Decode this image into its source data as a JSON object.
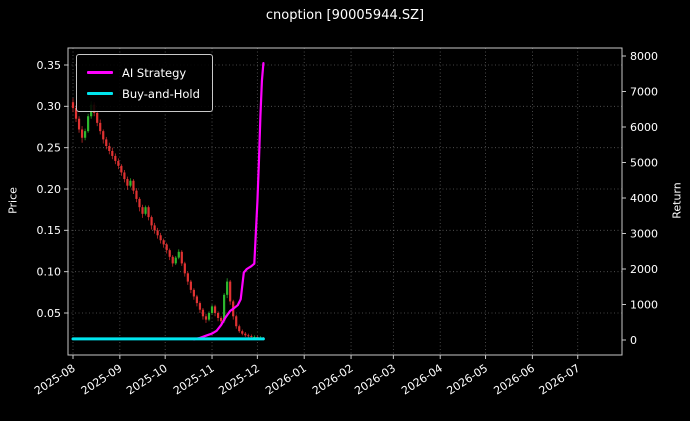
{
  "title": "cnoption [90005944.SZ]",
  "legend": [
    {
      "label": "AI Strategy",
      "color": "#ff00ff",
      "swatch_height": 2.5
    },
    {
      "label": "Buy-and-Hold",
      "color": "#00e5ee",
      "swatch_height": 3.5
    }
  ],
  "chart_data": {
    "type": "candlestick",
    "title": "cnoption [90005944.SZ]",
    "left_axis": {
      "label": "Price",
      "ticks": [
        0.05,
        0.1,
        0.15,
        0.2,
        0.25,
        0.3,
        0.35
      ],
      "range": [
        0.0,
        0.37
      ]
    },
    "right_axis": {
      "label": "Return",
      "ticks": [
        0,
        1000,
        2000,
        3000,
        4000,
        5000,
        6000,
        7000,
        8000
      ],
      "range": [
        -450,
        8250
      ]
    },
    "x_axis": {
      "ticks": [
        "2025-08",
        "2025-09",
        "2025-10",
        "2025-11",
        "2025-12",
        "2026-01",
        "2026-02",
        "2026-03",
        "2026-04",
        "2026-05",
        "2026-06",
        "2026-07"
      ],
      "range": [
        "2025-07-29",
        "2026-07-29"
      ]
    },
    "colors": {
      "background": "#000000",
      "text": "#ffffff",
      "spine": "#c8c8c8",
      "grid": "#5a5a5a",
      "up": "#2db82d",
      "down": "#e03232"
    },
    "candles": [
      [
        "2025-08-01",
        0.305,
        0.31,
        0.293,
        0.298
      ],
      [
        "2025-08-03",
        0.298,
        0.301,
        0.281,
        0.285
      ],
      [
        "2025-08-05",
        0.285,
        0.288,
        0.268,
        0.272
      ],
      [
        "2025-08-07",
        0.272,
        0.276,
        0.256,
        0.262
      ],
      [
        "2025-08-09",
        0.262,
        0.273,
        0.259,
        0.27
      ],
      [
        "2025-08-11",
        0.27,
        0.291,
        0.268,
        0.288
      ],
      [
        "2025-08-13",
        0.288,
        0.306,
        0.285,
        0.302
      ],
      [
        "2025-08-15",
        0.302,
        0.305,
        0.288,
        0.292
      ],
      [
        "2025-08-17",
        0.292,
        0.295,
        0.276,
        0.28
      ],
      [
        "2025-08-19",
        0.28,
        0.284,
        0.266,
        0.27
      ],
      [
        "2025-08-21",
        0.27,
        0.272,
        0.255,
        0.26
      ],
      [
        "2025-08-23",
        0.26,
        0.263,
        0.248,
        0.252
      ],
      [
        "2025-08-25",
        0.252,
        0.256,
        0.242,
        0.246
      ],
      [
        "2025-08-27",
        0.246,
        0.25,
        0.236,
        0.24
      ],
      [
        "2025-08-29",
        0.24,
        0.243,
        0.23,
        0.234
      ],
      [
        "2025-08-31",
        0.234,
        0.237,
        0.224,
        0.228
      ],
      [
        "2025-09-02",
        0.228,
        0.23,
        0.216,
        0.22
      ],
      [
        "2025-09-04",
        0.22,
        0.223,
        0.208,
        0.212
      ],
      [
        "2025-09-06",
        0.212,
        0.215,
        0.199,
        0.204
      ],
      [
        "2025-09-08",
        0.204,
        0.213,
        0.202,
        0.21
      ],
      [
        "2025-09-10",
        0.21,
        0.212,
        0.194,
        0.198
      ],
      [
        "2025-09-12",
        0.198,
        0.201,
        0.184,
        0.188
      ],
      [
        "2025-09-14",
        0.188,
        0.19,
        0.173,
        0.178
      ],
      [
        "2025-09-16",
        0.178,
        0.181,
        0.165,
        0.17
      ],
      [
        "2025-09-18",
        0.17,
        0.18,
        0.168,
        0.178
      ],
      [
        "2025-09-20",
        0.178,
        0.18,
        0.162,
        0.166
      ],
      [
        "2025-09-22",
        0.166,
        0.168,
        0.151,
        0.156
      ],
      [
        "2025-09-24",
        0.156,
        0.159,
        0.146,
        0.15
      ],
      [
        "2025-09-26",
        0.15,
        0.153,
        0.14,
        0.144
      ],
      [
        "2025-09-28",
        0.144,
        0.147,
        0.134,
        0.138
      ],
      [
        "2025-09-30",
        0.138,
        0.14,
        0.129,
        0.133
      ],
      [
        "2025-10-02",
        0.133,
        0.135,
        0.122,
        0.126
      ],
      [
        "2025-10-04",
        0.126,
        0.128,
        0.114,
        0.118
      ],
      [
        "2025-10-06",
        0.118,
        0.12,
        0.106,
        0.11
      ],
      [
        "2025-10-08",
        0.11,
        0.119,
        0.108,
        0.117
      ],
      [
        "2025-10-10",
        0.117,
        0.127,
        0.115,
        0.124
      ],
      [
        "2025-10-12",
        0.124,
        0.126,
        0.107,
        0.11
      ],
      [
        "2025-10-14",
        0.11,
        0.112,
        0.094,
        0.098
      ],
      [
        "2025-10-16",
        0.098,
        0.1,
        0.084,
        0.088
      ],
      [
        "2025-10-18",
        0.088,
        0.09,
        0.074,
        0.078
      ],
      [
        "2025-10-20",
        0.078,
        0.08,
        0.066,
        0.07
      ],
      [
        "2025-10-22",
        0.07,
        0.072,
        0.058,
        0.062
      ],
      [
        "2025-10-24",
        0.062,
        0.064,
        0.05,
        0.054
      ],
      [
        "2025-10-26",
        0.054,
        0.056,
        0.042,
        0.046
      ],
      [
        "2025-10-28",
        0.046,
        0.049,
        0.038,
        0.042
      ],
      [
        "2025-10-30",
        0.042,
        0.052,
        0.04,
        0.05
      ],
      [
        "2025-11-01",
        0.05,
        0.06,
        0.048,
        0.058
      ],
      [
        "2025-11-03",
        0.058,
        0.06,
        0.046,
        0.05
      ],
      [
        "2025-11-05",
        0.05,
        0.052,
        0.04,
        0.044
      ],
      [
        "2025-11-07",
        0.044,
        0.046,
        0.036,
        0.04
      ],
      [
        "2025-11-09",
        0.04,
        0.074,
        0.038,
        0.072
      ],
      [
        "2025-11-11",
        0.072,
        0.092,
        0.068,
        0.088
      ],
      [
        "2025-11-13",
        0.088,
        0.09,
        0.06,
        0.064
      ],
      [
        "2025-11-15",
        0.064,
        0.066,
        0.042,
        0.046
      ],
      [
        "2025-11-17",
        0.046,
        0.048,
        0.031,
        0.034
      ],
      [
        "2025-11-19",
        0.034,
        0.036,
        0.026,
        0.028
      ],
      [
        "2025-11-21",
        0.028,
        0.03,
        0.023,
        0.025
      ],
      [
        "2025-11-23",
        0.025,
        0.027,
        0.021,
        0.023
      ],
      [
        "2025-11-25",
        0.023,
        0.025,
        0.02,
        0.022
      ],
      [
        "2025-11-27",
        0.022,
        0.024,
        0.019,
        0.021
      ],
      [
        "2025-11-29",
        0.021,
        0.023,
        0.019,
        0.021
      ],
      [
        "2025-12-01",
        0.021,
        0.022,
        0.018,
        0.02
      ],
      [
        "2025-12-03",
        0.02,
        0.022,
        0.018,
        0.02
      ],
      [
        "2025-12-05",
        0.02,
        0.021,
        0.017,
        0.019
      ]
    ],
    "series": [
      {
        "name": "AI Strategy",
        "axis": "right",
        "color": "#ff00ff",
        "width": 2.2,
        "points": [
          [
            "2025-10-20",
            20
          ],
          [
            "2025-10-24",
            60
          ],
          [
            "2025-10-28",
            120
          ],
          [
            "2025-11-01",
            180
          ],
          [
            "2025-11-04",
            260
          ],
          [
            "2025-11-07",
            420
          ],
          [
            "2025-11-10",
            640
          ],
          [
            "2025-11-13",
            820
          ],
          [
            "2025-11-15",
            880
          ],
          [
            "2025-11-18",
            980
          ],
          [
            "2025-11-20",
            1150
          ],
          [
            "2025-11-22",
            1900
          ],
          [
            "2025-11-24",
            2000
          ],
          [
            "2025-11-27",
            2080
          ],
          [
            "2025-11-29",
            2150
          ],
          [
            "2025-12-01",
            3900
          ],
          [
            "2025-12-02",
            5000
          ],
          [
            "2025-12-03",
            6300
          ],
          [
            "2025-12-04",
            7300
          ],
          [
            "2025-12-05",
            7800
          ]
        ]
      },
      {
        "name": "Buy-and-Hold",
        "axis": "right",
        "color": "#00e5ee",
        "width": 3,
        "points": [
          [
            "2025-08-01",
            30
          ],
          [
            "2025-12-05",
            30
          ]
        ]
      }
    ]
  }
}
